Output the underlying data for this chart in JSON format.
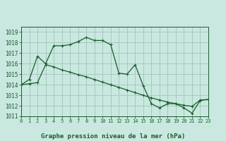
{
  "title": "Graphe pression niveau de la mer (hPa)",
  "background_color": "#c8e8e0",
  "grid_color": "#a8c8c0",
  "line_color": "#1a5c2a",
  "series1_x": [
    0,
    1,
    2,
    3,
    4,
    5,
    6,
    7,
    8,
    9,
    10,
    11,
    12,
    13,
    14,
    15,
    16,
    17,
    18,
    19,
    20,
    21,
    22,
    23
  ],
  "series1_y": [
    1014.0,
    1014.5,
    1016.7,
    1016.0,
    1017.7,
    1017.7,
    1017.8,
    1018.1,
    1018.5,
    1018.2,
    1018.2,
    1017.8,
    1015.1,
    1015.0,
    1015.9,
    1013.9,
    1012.2,
    1011.8,
    1012.2,
    1012.2,
    1011.8,
    1011.3,
    1012.5,
    1012.6
  ],
  "series2_x": [
    0,
    1,
    2,
    3,
    4,
    5,
    6,
    7,
    8,
    9,
    10,
    11,
    12,
    13,
    14,
    15,
    16,
    17,
    18,
    19,
    20,
    21,
    22,
    23
  ],
  "series2_y": [
    1014.0,
    1014.1,
    1014.2,
    1015.9,
    1015.7,
    1015.4,
    1015.2,
    1014.95,
    1014.75,
    1014.5,
    1014.25,
    1014.0,
    1013.75,
    1013.5,
    1013.25,
    1013.0,
    1012.75,
    1012.55,
    1012.35,
    1012.2,
    1012.05,
    1011.95,
    1012.55,
    1012.6
  ],
  "xlim": [
    0,
    23
  ],
  "ylim": [
    1011.0,
    1019.5
  ],
  "yticks": [
    1011,
    1012,
    1013,
    1014,
    1015,
    1016,
    1017,
    1018,
    1019
  ],
  "xticks": [
    0,
    1,
    2,
    3,
    4,
    5,
    6,
    7,
    8,
    9,
    10,
    11,
    12,
    13,
    14,
    15,
    16,
    17,
    18,
    19,
    20,
    21,
    22,
    23
  ],
  "ylabel_fontsize": 5.0,
  "xlabel_fontsize": 5.0,
  "title_fontsize": 6.5
}
